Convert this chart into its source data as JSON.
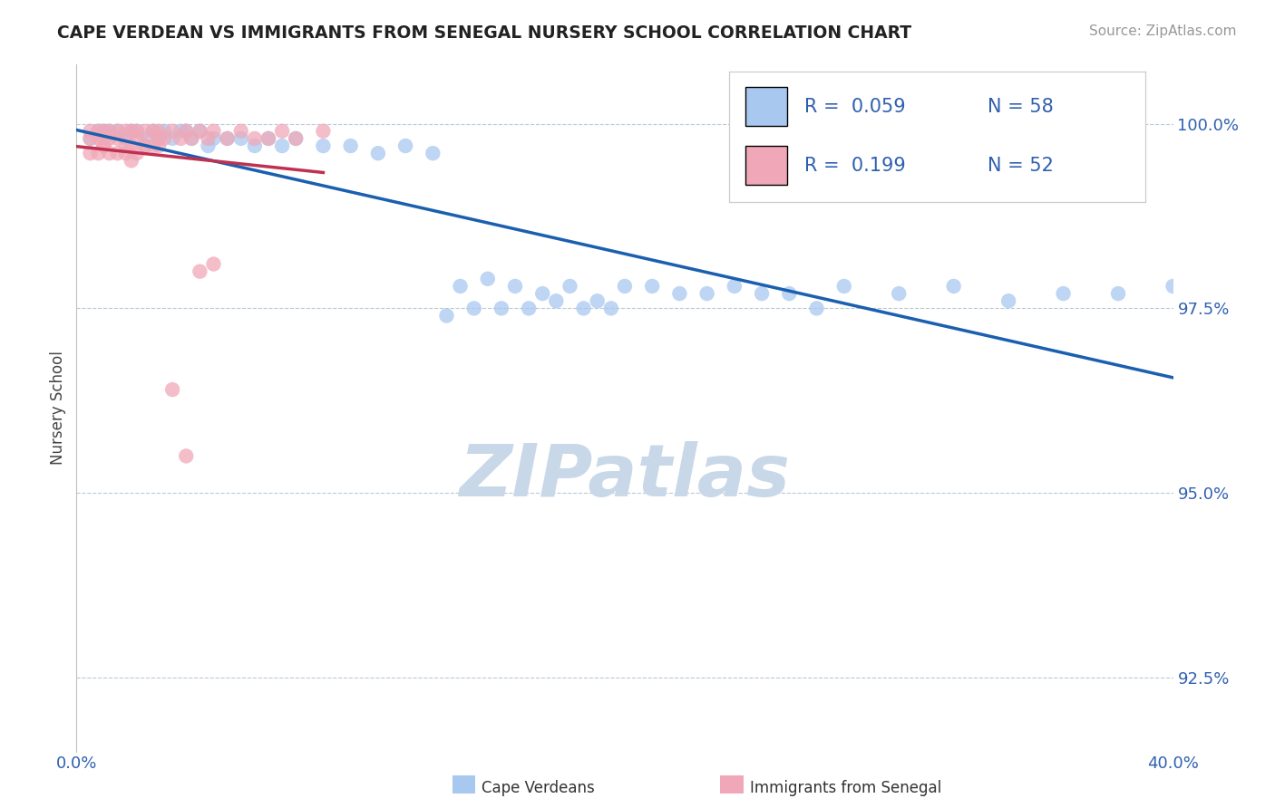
{
  "title": "CAPE VERDEAN VS IMMIGRANTS FROM SENEGAL NURSERY SCHOOL CORRELATION CHART",
  "source": "Source: ZipAtlas.com",
  "ylabel": "Nursery School",
  "xlim": [
    0.0,
    0.4
  ],
  "ylim": [
    0.915,
    1.008
  ],
  "yticks": [
    0.925,
    0.95,
    0.975,
    1.0
  ],
  "ytick_labels": [
    "92.5%",
    "95.0%",
    "97.5%",
    "100.0%"
  ],
  "xticks": [
    0.0,
    0.05,
    0.1,
    0.15,
    0.2,
    0.25,
    0.3,
    0.35,
    0.4
  ],
  "xtick_labels_first": "0.0%",
  "xtick_labels_last": "40.0%",
  "bottom_labels": [
    "Cape Verdeans",
    "Immigrants from Senegal"
  ],
  "r1": "0.059",
  "n1": "58",
  "r2": "0.199",
  "n2": "52",
  "blue_color": "#a8c8f0",
  "pink_color": "#f0a8b8",
  "blue_line_color": "#1a5fb0",
  "pink_line_color": "#c03050",
  "watermark_color": "#c8d8e8",
  "blue_scatter_x": [
    0.005,
    0.008,
    0.01,
    0.012,
    0.015,
    0.018,
    0.02,
    0.022,
    0.025,
    0.028,
    0.03,
    0.032,
    0.035,
    0.038,
    0.04,
    0.042,
    0.045,
    0.048,
    0.05,
    0.055,
    0.06,
    0.065,
    0.07,
    0.075,
    0.08,
    0.09,
    0.1,
    0.11,
    0.12,
    0.13,
    0.14,
    0.15,
    0.16,
    0.17,
    0.18,
    0.19,
    0.2,
    0.22,
    0.24,
    0.26,
    0.28,
    0.3,
    0.32,
    0.34,
    0.36,
    0.38,
    0.4,
    0.21,
    0.25,
    0.27,
    0.185,
    0.195,
    0.23,
    0.165,
    0.175,
    0.145,
    0.155,
    0.135
  ],
  "blue_scatter_y": [
    0.998,
    0.999,
    0.999,
    0.999,
    0.999,
    0.998,
    0.999,
    0.999,
    0.998,
    0.999,
    0.998,
    0.999,
    0.998,
    0.999,
    0.999,
    0.998,
    0.999,
    0.997,
    0.998,
    0.998,
    0.998,
    0.997,
    0.998,
    0.997,
    0.998,
    0.997,
    0.997,
    0.996,
    0.997,
    0.996,
    0.978,
    0.979,
    0.978,
    0.977,
    0.978,
    0.976,
    0.978,
    0.977,
    0.978,
    0.977,
    0.978,
    0.977,
    0.978,
    0.976,
    0.977,
    0.977,
    0.978,
    0.978,
    0.977,
    0.975,
    0.975,
    0.975,
    0.977,
    0.975,
    0.976,
    0.975,
    0.975,
    0.974
  ],
  "pink_scatter_x": [
    0.005,
    0.005,
    0.008,
    0.008,
    0.01,
    0.01,
    0.01,
    0.012,
    0.012,
    0.015,
    0.015,
    0.018,
    0.018,
    0.02,
    0.02,
    0.022,
    0.022,
    0.025,
    0.025,
    0.028,
    0.028,
    0.03,
    0.03,
    0.032,
    0.035,
    0.038,
    0.04,
    0.042,
    0.045,
    0.048,
    0.05,
    0.055,
    0.06,
    0.065,
    0.07,
    0.075,
    0.08,
    0.09,
    0.045,
    0.05,
    0.005,
    0.008,
    0.01,
    0.012,
    0.015,
    0.018,
    0.02,
    0.022,
    0.025,
    0.03,
    0.035,
    0.04
  ],
  "pink_scatter_y": [
    0.999,
    0.998,
    0.999,
    0.998,
    0.999,
    0.998,
    0.997,
    0.999,
    0.998,
    0.999,
    0.998,
    0.999,
    0.997,
    0.999,
    0.997,
    0.999,
    0.998,
    0.999,
    0.997,
    0.999,
    0.997,
    0.999,
    0.998,
    0.998,
    0.999,
    0.998,
    0.999,
    0.998,
    0.999,
    0.998,
    0.999,
    0.998,
    0.999,
    0.998,
    0.998,
    0.999,
    0.998,
    0.999,
    0.98,
    0.981,
    0.996,
    0.996,
    0.997,
    0.996,
    0.996,
    0.996,
    0.995,
    0.996,
    0.997,
    0.997,
    0.964,
    0.955
  ],
  "figsize": [
    14.06,
    8.92
  ],
  "dpi": 100
}
